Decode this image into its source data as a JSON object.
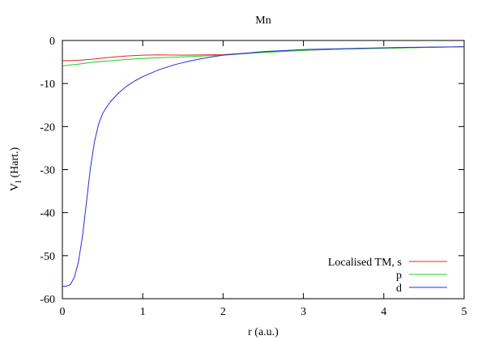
{
  "chart_data": {
    "type": "line",
    "title": "Mn",
    "xlabel": "r (a.u.)",
    "ylabel_main": "V",
    "ylabel_sub": "l",
    "ylabel_unit": " (Hart.)",
    "xlim": [
      0,
      5
    ],
    "ylim": [
      -60,
      0
    ],
    "xticks": [
      0,
      1,
      2,
      3,
      4,
      5
    ],
    "xtick_labels": [
      "0",
      "1",
      "2",
      "3",
      "4",
      "5"
    ],
    "yticks": [
      0,
      -10,
      -20,
      -30,
      -40,
      -50,
      -60
    ],
    "ytick_labels": [
      "0",
      "-10",
      "-20",
      "-30",
      "-40",
      "-50",
      "-60"
    ],
    "grid": false,
    "legend_position": "bottom-right",
    "series": [
      {
        "name": "Localised TM, s",
        "color": "#e8261e",
        "x": [
          0,
          0.2,
          0.4,
          0.6,
          0.8,
          1.0,
          1.2,
          1.5,
          2.0,
          2.5,
          3.0,
          3.5,
          4.0,
          4.5,
          5.0
        ],
        "y": [
          -4.7,
          -4.6,
          -4.3,
          -3.9,
          -3.6,
          -3.4,
          -3.35,
          -3.4,
          -3.3,
          -2.7,
          -2.3,
          -2.0,
          -1.8,
          -1.6,
          -1.45
        ]
      },
      {
        "name": "p",
        "color": "#1fcf1f",
        "x": [
          0,
          0.2,
          0.4,
          0.6,
          0.8,
          1.0,
          1.2,
          1.5,
          2.0,
          2.5,
          3.0,
          3.5,
          4.0,
          4.5,
          5.0
        ],
        "y": [
          -5.9,
          -5.5,
          -5.0,
          -4.7,
          -4.4,
          -4.2,
          -4.0,
          -3.8,
          -3.4,
          -2.8,
          -2.3,
          -2.0,
          -1.8,
          -1.6,
          -1.45
        ]
      },
      {
        "name": "d",
        "color": "#1f2fe0",
        "x": [
          0,
          0.05,
          0.1,
          0.15,
          0.2,
          0.25,
          0.3,
          0.35,
          0.4,
          0.45,
          0.5,
          0.55,
          0.6,
          0.7,
          0.8,
          0.9,
          1.0,
          1.2,
          1.4,
          1.6,
          1.8,
          2.0,
          2.5,
          3.0,
          3.5,
          4.0,
          4.5,
          5.0
        ],
        "y": [
          -57.1,
          -57.1,
          -56.7,
          -55.0,
          -51.5,
          -45.5,
          -37.5,
          -29.5,
          -23.5,
          -19.5,
          -17.0,
          -15.5,
          -14.2,
          -12.2,
          -10.6,
          -9.4,
          -8.4,
          -6.8,
          -5.6,
          -4.7,
          -4.0,
          -3.4,
          -2.6,
          -2.1,
          -1.9,
          -1.7,
          -1.55,
          -1.45
        ]
      }
    ]
  }
}
